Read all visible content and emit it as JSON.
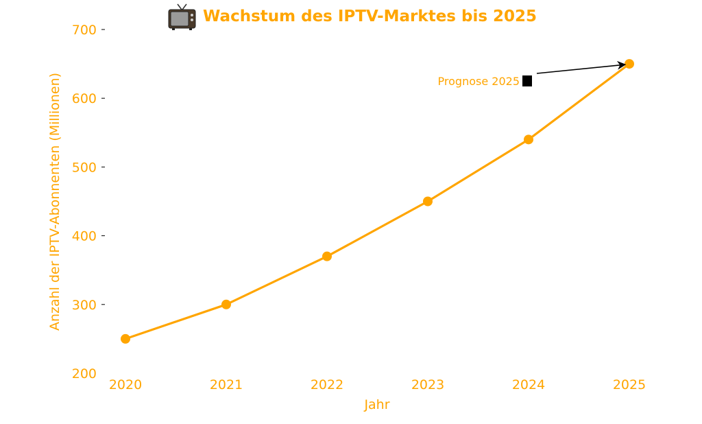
{
  "colors": {
    "accent": "#FFA500",
    "tick_mark": "#000000",
    "annotation_arrow": "#000000"
  },
  "chart_data": {
    "type": "line",
    "title": "Wachstum des IPTV-Marktes bis 2025",
    "title_icon": "tv-icon",
    "xlabel": "Jahr",
    "ylabel": "Anzahl der IPTV-Abonnenten (Millionen)",
    "x": [
      2020,
      2021,
      2022,
      2023,
      2024,
      2025
    ],
    "x_tick_labels": [
      "2020",
      "2021",
      "2022",
      "2023",
      "2024",
      "2025"
    ],
    "y": [
      250,
      300,
      370,
      450,
      540,
      650
    ],
    "ylim": [
      200,
      700
    ],
    "y_ticks": [
      200,
      300,
      400,
      500,
      600,
      700
    ],
    "y_tick_labels": [
      "200",
      "300",
      "400",
      "500",
      "600",
      "700"
    ],
    "grid": false,
    "legend": "none",
    "annotation": {
      "text": "Prognose 2025",
      "icon": "black-square",
      "target_x": 2025,
      "target_y": 650
    }
  }
}
